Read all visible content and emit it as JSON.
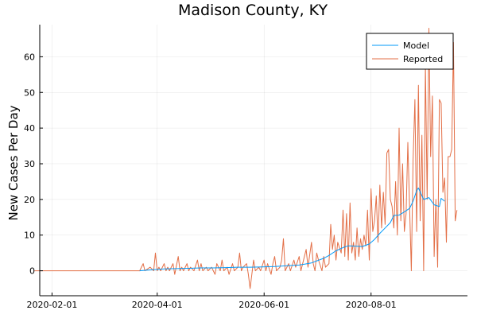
{
  "chart_data": {
    "type": "line",
    "title": "Madison County, KY",
    "xlabel": "",
    "ylabel": "New Cases Per Day",
    "x_axis": {
      "type": "date",
      "range": [
        "2020-01-25",
        "2020-09-25"
      ],
      "ticks": [
        "2020-02-01",
        "2020-04-01",
        "2020-06-01",
        "2020-08-01"
      ]
    },
    "ylim": [
      -7,
      69
    ],
    "y_ticks": [
      0,
      10,
      20,
      30,
      40,
      50,
      60
    ],
    "grid": true,
    "legend": {
      "placement": "top-right"
    },
    "colors": {
      "model": "#009AFA",
      "reported": "#E36F47"
    },
    "series": [
      {
        "name": "Model",
        "color": "#009AFA",
        "points": [
          [
            "2020-03-22",
            0
          ],
          [
            "2020-03-29",
            0.3
          ],
          [
            "2020-04-05",
            0.5
          ],
          [
            "2020-04-12",
            0.6
          ],
          [
            "2020-04-19",
            0.7
          ],
          [
            "2020-04-26",
            0.8
          ],
          [
            "2020-05-03",
            0.8
          ],
          [
            "2020-05-10",
            0.9
          ],
          [
            "2020-05-17",
            1.0
          ],
          [
            "2020-05-24",
            1.0
          ],
          [
            "2020-05-31",
            1.1
          ],
          [
            "2020-06-07",
            1.2
          ],
          [
            "2020-06-14",
            1.4
          ],
          [
            "2020-06-21",
            1.6
          ],
          [
            "2020-06-28",
            2.2
          ],
          [
            "2020-07-05",
            3.5
          ],
          [
            "2020-07-08",
            4.3
          ],
          [
            "2020-07-12",
            5.6
          ],
          [
            "2020-07-16",
            6.5
          ],
          [
            "2020-07-19",
            7.0
          ],
          [
            "2020-07-23",
            6.9
          ],
          [
            "2020-07-27",
            6.8
          ],
          [
            "2020-07-31",
            7.5
          ],
          [
            "2020-08-03",
            8.8
          ],
          [
            "2020-08-06",
            10.5
          ],
          [
            "2020-08-09",
            12.0
          ],
          [
            "2020-08-12",
            13.5
          ],
          [
            "2020-08-14",
            15.5
          ],
          [
            "2020-08-17",
            15.6
          ],
          [
            "2020-08-20",
            16.5
          ],
          [
            "2020-08-23",
            17.5
          ],
          [
            "2020-08-25",
            19.5
          ],
          [
            "2020-08-27",
            22.5
          ],
          [
            "2020-08-28",
            23.2
          ],
          [
            "2020-08-31",
            20.0
          ],
          [
            "2020-09-03",
            20.5
          ],
          [
            "2020-09-06",
            18.5
          ],
          [
            "2020-09-09",
            18.0
          ],
          [
            "2020-09-10",
            20.3
          ],
          [
            "2020-09-12",
            19.5
          ]
        ]
      },
      {
        "name": "Reported",
        "color": "#E36F47",
        "points": [
          [
            "2020-01-22",
            0
          ],
          [
            "2020-03-22",
            0
          ],
          [
            "2020-03-24",
            2
          ],
          [
            "2020-03-25",
            0
          ],
          [
            "2020-03-28",
            1
          ],
          [
            "2020-03-30",
            0
          ],
          [
            "2020-03-31",
            5
          ],
          [
            "2020-04-01",
            0
          ],
          [
            "2020-04-02",
            1
          ],
          [
            "2020-04-03",
            0
          ],
          [
            "2020-04-05",
            2
          ],
          [
            "2020-04-06",
            0
          ],
          [
            "2020-04-07",
            1
          ],
          [
            "2020-04-08",
            0
          ],
          [
            "2020-04-10",
            2
          ],
          [
            "2020-04-11",
            -1
          ],
          [
            "2020-04-13",
            4
          ],
          [
            "2020-04-14",
            0
          ],
          [
            "2020-04-15",
            1
          ],
          [
            "2020-04-16",
            0
          ],
          [
            "2020-04-18",
            2
          ],
          [
            "2020-04-19",
            0
          ],
          [
            "2020-04-20",
            1
          ],
          [
            "2020-04-22",
            0
          ],
          [
            "2020-04-24",
            3
          ],
          [
            "2020-04-25",
            0
          ],
          [
            "2020-04-26",
            2
          ],
          [
            "2020-04-27",
            0
          ],
          [
            "2020-04-29",
            1
          ],
          [
            "2020-04-30",
            0
          ],
          [
            "2020-05-02",
            1
          ],
          [
            "2020-05-04",
            -1
          ],
          [
            "2020-05-05",
            2
          ],
          [
            "2020-05-07",
            0
          ],
          [
            "2020-05-08",
            3
          ],
          [
            "2020-05-09",
            0
          ],
          [
            "2020-05-11",
            1
          ],
          [
            "2020-05-12",
            -1
          ],
          [
            "2020-05-14",
            2
          ],
          [
            "2020-05-15",
            0
          ],
          [
            "2020-05-17",
            1
          ],
          [
            "2020-05-18",
            5
          ],
          [
            "2020-05-19",
            0
          ],
          [
            "2020-05-20",
            1
          ],
          [
            "2020-05-22",
            2
          ],
          [
            "2020-05-23",
            -1
          ],
          [
            "2020-05-24",
            -5
          ],
          [
            "2020-05-26",
            3
          ],
          [
            "2020-05-27",
            0
          ],
          [
            "2020-05-29",
            1
          ],
          [
            "2020-05-30",
            0
          ],
          [
            "2020-06-01",
            3
          ],
          [
            "2020-06-02",
            0
          ],
          [
            "2020-06-03",
            2
          ],
          [
            "2020-06-05",
            -1
          ],
          [
            "2020-06-06",
            2
          ],
          [
            "2020-06-07",
            4
          ],
          [
            "2020-06-08",
            0
          ],
          [
            "2020-06-10",
            1
          ],
          [
            "2020-06-11",
            3
          ],
          [
            "2020-06-12",
            9
          ],
          [
            "2020-06-13",
            0
          ],
          [
            "2020-06-15",
            2
          ],
          [
            "2020-06-16",
            0
          ],
          [
            "2020-06-18",
            3
          ],
          [
            "2020-06-19",
            1
          ],
          [
            "2020-06-21",
            4
          ],
          [
            "2020-06-22",
            0
          ],
          [
            "2020-06-23",
            2
          ],
          [
            "2020-06-25",
            6
          ],
          [
            "2020-06-26",
            1
          ],
          [
            "2020-06-28",
            8
          ],
          [
            "2020-06-29",
            2
          ],
          [
            "2020-06-30",
            0
          ],
          [
            "2020-07-01",
            5
          ],
          [
            "2020-07-02",
            3
          ],
          [
            "2020-07-04",
            0
          ],
          [
            "2020-07-05",
            4
          ],
          [
            "2020-07-06",
            1
          ],
          [
            "2020-07-08",
            2
          ],
          [
            "2020-07-09",
            13
          ],
          [
            "2020-07-10",
            6
          ],
          [
            "2020-07-11",
            10
          ],
          [
            "2020-07-12",
            3
          ],
          [
            "2020-07-13",
            8
          ],
          [
            "2020-07-15",
            5
          ],
          [
            "2020-07-16",
            17
          ],
          [
            "2020-07-17",
            4
          ],
          [
            "2020-07-18",
            16
          ],
          [
            "2020-07-19",
            3
          ],
          [
            "2020-07-20",
            19
          ],
          [
            "2020-07-21",
            5
          ],
          [
            "2020-07-22",
            8
          ],
          [
            "2020-07-23",
            3
          ],
          [
            "2020-07-24",
            12
          ],
          [
            "2020-07-25",
            4
          ],
          [
            "2020-07-26",
            9
          ],
          [
            "2020-07-27",
            6
          ],
          [
            "2020-07-28",
            10
          ],
          [
            "2020-07-29",
            7
          ],
          [
            "2020-07-30",
            17
          ],
          [
            "2020-07-31",
            3
          ],
          [
            "2020-08-01",
            23
          ],
          [
            "2020-08-02",
            11
          ],
          [
            "2020-08-03",
            14
          ],
          [
            "2020-08-04",
            21
          ],
          [
            "2020-08-05",
            8
          ],
          [
            "2020-08-06",
            24
          ],
          [
            "2020-08-07",
            12
          ],
          [
            "2020-08-08",
            22
          ],
          [
            "2020-08-09",
            13
          ],
          [
            "2020-08-10",
            33
          ],
          [
            "2020-08-11",
            34
          ],
          [
            "2020-08-12",
            20
          ],
          [
            "2020-08-13",
            18
          ],
          [
            "2020-08-14",
            12
          ],
          [
            "2020-08-15",
            25
          ],
          [
            "2020-08-16",
            10
          ],
          [
            "2020-08-17",
            40
          ],
          [
            "2020-08-18",
            14
          ],
          [
            "2020-08-19",
            30
          ],
          [
            "2020-08-20",
            11
          ],
          [
            "2020-08-21",
            16
          ],
          [
            "2020-08-22",
            36
          ],
          [
            "2020-08-23",
            18
          ],
          [
            "2020-08-24",
            0
          ],
          [
            "2020-08-25",
            31
          ],
          [
            "2020-08-26",
            48
          ],
          [
            "2020-08-27",
            11
          ],
          [
            "2020-08-28",
            52
          ],
          [
            "2020-08-29",
            14
          ],
          [
            "2020-08-30",
            38
          ],
          [
            "2020-08-31",
            0
          ],
          [
            "2020-09-01",
            58
          ],
          [
            "2020-09-02",
            20
          ],
          [
            "2020-09-03",
            68
          ],
          [
            "2020-09-04",
            32
          ],
          [
            "2020-09-05",
            49
          ],
          [
            "2020-09-06",
            4
          ],
          [
            "2020-09-07",
            20
          ],
          [
            "2020-09-08",
            1
          ],
          [
            "2020-09-09",
            48
          ],
          [
            "2020-09-10",
            47
          ],
          [
            "2020-09-11",
            22
          ],
          [
            "2020-09-12",
            26
          ],
          [
            "2020-09-13",
            8
          ],
          [
            "2020-09-14",
            32
          ],
          [
            "2020-09-15",
            32
          ],
          [
            "2020-09-16",
            34
          ],
          [
            "2020-09-17",
            64
          ],
          [
            "2020-09-18",
            14
          ],
          [
            "2020-09-19",
            17
          ]
        ]
      }
    ]
  }
}
